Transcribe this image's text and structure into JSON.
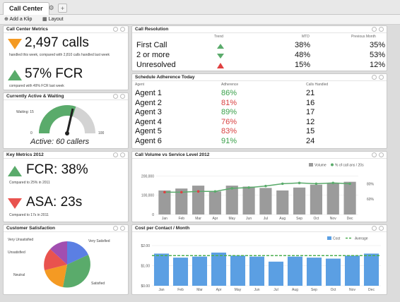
{
  "tab": {
    "title": "Call Center"
  },
  "toolbar": {
    "add": "Add a Klip",
    "layout": "Layout"
  },
  "metrics": {
    "title": "Call Center Metrics",
    "calls": "2,497 calls",
    "calls_sub": "handled this week, compared with 2,810 calls handled last week",
    "fcr": "57% FCR",
    "fcr_sub": "compared with 49% FCR last week"
  },
  "active": {
    "title": "Currently Active & Waiting",
    "waiting": "Waiting: 15",
    "min": "0",
    "max": "100",
    "active": "Active: 60 callers",
    "gauge_value": 60
  },
  "resolution": {
    "title": "Call Resolution",
    "headers": [
      "Trend",
      "MTD",
      "Previous Month"
    ],
    "rows": [
      {
        "label": "First Call",
        "trend": "up",
        "mtd": "38%",
        "prev": "35%"
      },
      {
        "label": "2 or more",
        "trend": "down",
        "mtd": "48%",
        "prev": "53%"
      },
      {
        "label": "Unresolved",
        "trend": "warn",
        "mtd": "15%",
        "prev": "12%"
      }
    ]
  },
  "schedule": {
    "title": "Schedule Adherence Today",
    "headers": [
      "Agent",
      "Adherence",
      "Calls Handled"
    ],
    "rows": [
      {
        "agent": "Agent 1",
        "adh": "86%",
        "calls": "21",
        "color": "#3aa04a"
      },
      {
        "agent": "Agent 2",
        "adh": "81%",
        "calls": "16",
        "color": "#d84040"
      },
      {
        "agent": "Agent 3",
        "adh": "89%",
        "calls": "17",
        "color": "#3aa04a"
      },
      {
        "agent": "Agent 4",
        "adh": "76%",
        "calls": "12",
        "color": "#d84040"
      },
      {
        "agent": "Agent 5",
        "adh": "83%",
        "calls": "15",
        "color": "#d84040"
      },
      {
        "agent": "Agent 6",
        "adh": "91%",
        "calls": "24",
        "color": "#3aa04a"
      }
    ]
  },
  "key": {
    "title": "Key Metrics 2012",
    "fcr": "FCR: 38%",
    "fcr_sub": "Compared to 25% in 2011",
    "asa": "ASA: 23s",
    "asa_sub": "Compared to 17s in 2011"
  },
  "satisfaction": {
    "title": "Customer Satisfaction",
    "labels": {
      "very_unsatisfied": "Very Unsatisfied",
      "unsatisfied": "Unsatisfied",
      "neutral": "Neutral",
      "satisfied": "Satisfied",
      "very_satisfied": "Very Satisfied"
    }
  },
  "chart_data": [
    {
      "type": "bar",
      "title": "Call Volume vs Service Level 2012",
      "categories": [
        "Jan",
        "Feb",
        "Mar",
        "Apr",
        "May",
        "Jun",
        "Jul",
        "Aug",
        "Sep",
        "Oct",
        "Nov",
        "Dec"
      ],
      "series": [
        {
          "name": "Volume",
          "values": [
            125000,
            135000,
            150000,
            120000,
            150000,
            145000,
            138000,
            125000,
            140000,
            155000,
            165000,
            170000
          ]
        },
        {
          "name": "% of call ans / 20s",
          "values": [
            69,
            69,
            70,
            70,
            74,
            75,
            77,
            80,
            81,
            80,
            81,
            80
          ]
        }
      ],
      "yticks": [
        "0",
        "100,000",
        "200,000"
      ],
      "y2ticks": [
        "60%",
        "80%"
      ],
      "ylim": [
        0,
        220000
      ],
      "y2lim": [
        40,
        95
      ],
      "legend": "top-right"
    },
    {
      "type": "bar",
      "title": "Cost per Contact / Month",
      "categories": [
        "Jan",
        "Feb",
        "Mar",
        "Apr",
        "May",
        "Jun",
        "Jul",
        "Aug",
        "Sep",
        "Oct",
        "Nov",
        "Dec"
      ],
      "series": [
        {
          "name": "Cost",
          "values": [
            1.6,
            1.4,
            1.45,
            1.65,
            1.5,
            1.45,
            1.2,
            1.45,
            1.4,
            1.35,
            1.5,
            1.6
          ]
        },
        {
          "name": "Average",
          "values": [
            1.5,
            1.5,
            1.5,
            1.5,
            1.5,
            1.5,
            1.5,
            1.5,
            1.5,
            1.5,
            1.5,
            1.5
          ]
        }
      ],
      "yticks": [
        "$0.00",
        "$1.00",
        "$2.00"
      ],
      "ylim": [
        0,
        2
      ],
      "legend": "top-right"
    }
  ],
  "colors": {
    "bar_gray": "#9b9b9b",
    "line_green": "#5aab6b",
    "bar_blue": "#5b9fe3",
    "dash_green": "#4caf50"
  }
}
